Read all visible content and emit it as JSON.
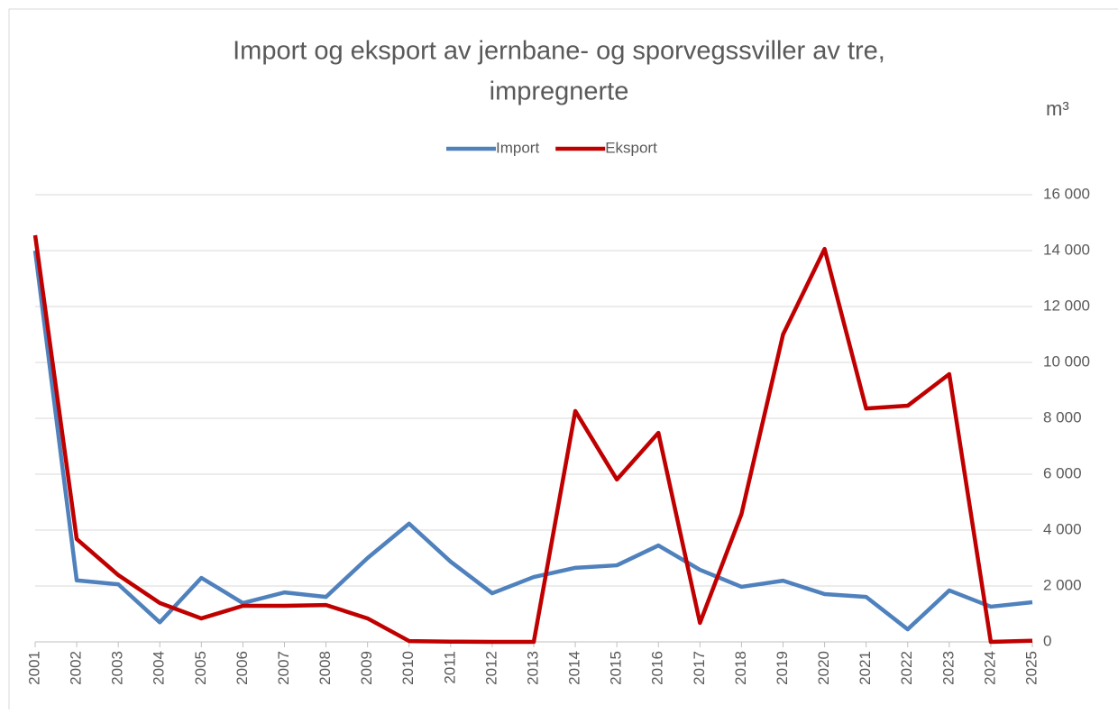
{
  "chart_data": {
    "type": "line",
    "title": [
      "Import og eksport av jernbane- og sporvegssviller av tre,",
      "impregnerte"
    ],
    "y_axis_label": "m³",
    "categories": [
      "2001",
      "2002",
      "2003",
      "2004",
      "2005",
      "2006",
      "2007",
      "2008",
      "2009",
      "2010",
      "2011",
      "2012",
      "2013",
      "2014",
      "2015",
      "2016",
      "2017",
      "2018",
      "2019",
      "2020",
      "2021",
      "2022",
      "2023",
      "2024",
      "2025"
    ],
    "series": [
      {
        "name": "Import",
        "color": "#4f81bd",
        "values": [
          14000,
          2200,
          2060,
          700,
          2290,
          1390,
          1770,
          1610,
          3000,
          4230,
          2870,
          1740,
          2320,
          2650,
          2740,
          3450,
          2580,
          1970,
          2190,
          1710,
          1610,
          450,
          1840,
          1260,
          1420
        ]
      },
      {
        "name": "Eksport",
        "color": "#c00000",
        "values": [
          14550,
          3680,
          2390,
          1390,
          840,
          1290,
          1290,
          1320,
          840,
          30,
          10,
          0,
          0,
          8260,
          5810,
          7480,
          680,
          4580,
          11000,
          14060,
          8350,
          8450,
          9580,
          0,
          40
        ]
      }
    ],
    "ylim": [
      0,
      16000
    ],
    "yticks": [
      0,
      {
        "value": 2000,
        "label": "2 000"
      },
      {
        "value": 4000,
        "label": "4 000"
      },
      {
        "value": 6000,
        "label": "6 000"
      },
      {
        "value": 8000,
        "label": "8 000"
      },
      {
        "value": 10000,
        "label": "10 000"
      },
      {
        "value": 12000,
        "label": "12 000"
      },
      {
        "value": 14000,
        "label": "14 000"
      },
      {
        "value": 16000,
        "label": "16 000"
      }
    ],
    "grid": true,
    "legend": "top",
    "y_axis_side": "right"
  }
}
